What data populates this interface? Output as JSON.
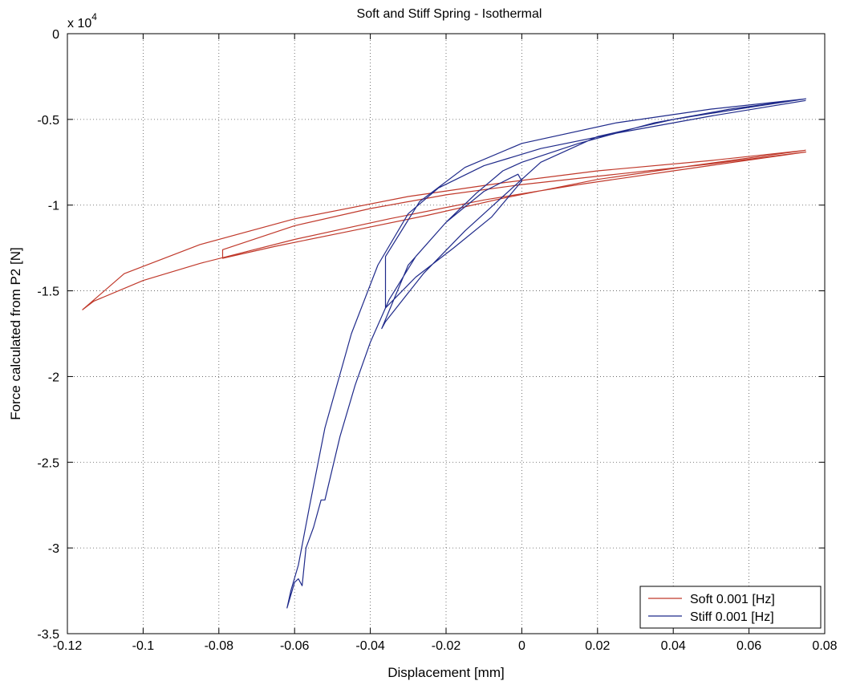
{
  "chart_data": {
    "type": "line",
    "title": "Soft and Stiff Spring - Isothermal",
    "xlabel": "Displacement [mm]",
    "ylabel": "Force calculated from P2 [N]",
    "y_multiplier": "x 10",
    "y_multiplier_exponent": "4",
    "xlim": [
      -0.12,
      0.08
    ],
    "ylim": [
      -3.5,
      0
    ],
    "xticks": [
      -0.12,
      -0.1,
      -0.08,
      -0.06,
      -0.04,
      -0.02,
      0,
      0.02,
      0.04,
      0.06,
      0.08
    ],
    "yticks": [
      0,
      -0.5,
      -1,
      -1.5,
      -2,
      -2.5,
      -3,
      -3.5
    ],
    "xtick_labels": [
      "-0.12",
      "-0.1",
      "-0.08",
      "-0.06",
      "-0.04",
      "-0.02",
      "0",
      "0.02",
      "0.04",
      "0.06",
      "0.08"
    ],
    "ytick_labels": [
      "0",
      "-0.5",
      "-1",
      "-1.5",
      "-2",
      "-2.5",
      "-3",
      "-3.5"
    ],
    "grid": true,
    "legend_position": "bottom-right",
    "colors": {
      "soft": "#c0392b",
      "stiff": "#1f2a8a",
      "grid": "#555555",
      "axis": "#000000"
    },
    "series": [
      {
        "name": "Soft 0.001 [Hz]",
        "color": "#c0392b",
        "x": [
          0.075,
          0.05,
          0.02,
          -0.005,
          -0.03,
          -0.06,
          -0.085,
          -0.105,
          -0.116,
          -0.113,
          -0.1,
          -0.085,
          -0.06,
          -0.035,
          -0.01,
          0.015,
          0.04,
          0.075,
          0.05,
          0.025,
          0.0,
          -0.02,
          -0.04,
          -0.06,
          -0.079,
          -0.079,
          -0.065,
          -0.045,
          -0.025,
          -0.005,
          0.02,
          0.045,
          0.075
        ],
        "y": [
          -0.68,
          -0.74,
          -0.8,
          -0.87,
          -0.95,
          -1.08,
          -1.23,
          -1.4,
          -1.61,
          -1.56,
          -1.44,
          -1.34,
          -1.2,
          -1.08,
          -0.97,
          -0.88,
          -0.8,
          -0.69,
          -0.76,
          -0.82,
          -0.88,
          -0.94,
          -1.02,
          -1.12,
          -1.26,
          -1.31,
          -1.24,
          -1.15,
          -1.06,
          -0.96,
          -0.85,
          -0.77,
          -0.68
        ]
      },
      {
        "name": "Stiff 0.001 [Hz]",
        "color": "#1f2a8a",
        "x": [
          0.075,
          0.05,
          0.025,
          0.005,
          -0.01,
          -0.022,
          -0.03,
          -0.038,
          -0.045,
          -0.052,
          -0.056,
          -0.059,
          -0.061,
          -0.062,
          -0.06,
          -0.059,
          -0.058,
          -0.057,
          -0.055,
          -0.053,
          -0.052,
          -0.048,
          -0.044,
          -0.04,
          -0.035,
          -0.028,
          -0.02,
          -0.012,
          -0.005,
          0.0,
          0.015,
          0.035,
          0.055,
          0.075,
          0.05,
          0.025,
          0.0,
          -0.015,
          -0.027,
          -0.036,
          -0.036,
          -0.028,
          -0.018,
          -0.008,
          0.0,
          -0.001,
          -0.01,
          -0.02,
          -0.03,
          -0.037,
          -0.036,
          -0.026,
          -0.015,
          -0.005,
          0.005,
          0.02,
          0.04,
          0.06,
          0.075
        ],
        "y": [
          -0.39,
          -0.48,
          -0.58,
          -0.67,
          -0.77,
          -0.9,
          -1.05,
          -1.35,
          -1.75,
          -2.3,
          -2.75,
          -3.1,
          -3.25,
          -3.35,
          -3.2,
          -3.18,
          -3.22,
          -3.0,
          -2.88,
          -2.72,
          -2.72,
          -2.35,
          -2.05,
          -1.8,
          -1.55,
          -1.3,
          -1.1,
          -0.93,
          -0.8,
          -0.75,
          -0.64,
          -0.52,
          -0.44,
          -0.38,
          -0.44,
          -0.52,
          -0.64,
          -0.78,
          -0.98,
          -1.3,
          -1.6,
          -1.42,
          -1.25,
          -1.07,
          -0.86,
          -0.82,
          -0.92,
          -1.1,
          -1.35,
          -1.72,
          -1.68,
          -1.4,
          -1.15,
          -0.95,
          -0.75,
          -0.6,
          -0.5,
          -0.43,
          -0.38
        ]
      }
    ]
  }
}
